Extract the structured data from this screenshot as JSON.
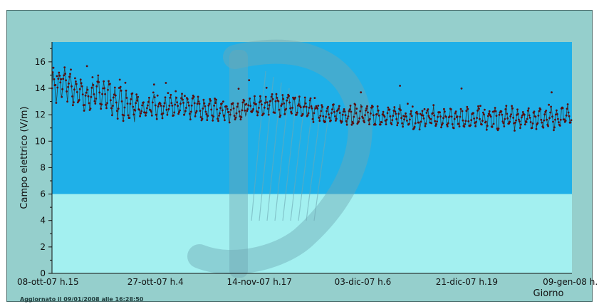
{
  "footer": {
    "updated_text": "Aggiornato il 09/01/2008 alle 16:28:50"
  },
  "colors": {
    "frame_bg": "#95cfcc",
    "above_threshold_band": "#1fb0e8",
    "below_threshold_band": "#a3f0f0",
    "line": "#2b3e3e",
    "points": "#5a0d0d",
    "watermark": "#6fa9b4"
  },
  "watermark_icon": "harp-logo-icon",
  "chart_data": {
    "type": "line",
    "title": "",
    "xlabel": "Giorno",
    "ylabel": "Campo elettrico (V/m)",
    "ylim": [
      0,
      17.5
    ],
    "yticks": [
      0,
      2,
      4,
      6,
      8,
      10,
      12,
      14,
      16
    ],
    "x_range_days": [
      0,
      93
    ],
    "xticks": [
      {
        "label": "08-ott-07 h.15",
        "day": 0
      },
      {
        "label": "27-ott-07 h.4",
        "day": 18.5
      },
      {
        "label": "14-nov-07 h.17",
        "day": 37.1
      },
      {
        "label": "03-dic-07 h.6",
        "day": 55.6
      },
      {
        "label": "21-dic-07 h.19",
        "day": 74.2
      },
      {
        "label": "09-gen-08 h.",
        "day": 92.7
      }
    ],
    "threshold": 6,
    "grid": false,
    "legend": "none",
    "series": [
      {
        "values": [
          14.3,
          13.9,
          14.6,
          14.1,
          13.7,
          13.8,
          13.2,
          13.4,
          13.9,
          13.3,
          13.7,
          13.0,
          12.9,
          12.8,
          12.6,
          12.8,
          12.4,
          12.5,
          12.7,
          12.4,
          12.5,
          12.6,
          12.6,
          12.8,
          12.7,
          12.5,
          12.7,
          12.4,
          12.4,
          12.5,
          12.3,
          12.3,
          12.2,
          12.2,
          12.2,
          12.5,
          12.6,
          12.5,
          12.6,
          12.8,
          12.9,
          12.6,
          12.8,
          12.8,
          12.5,
          12.4,
          12.4,
          12.3,
          12.1,
          12.1,
          12.0,
          12.1,
          12.0,
          12.1,
          11.9,
          12.0,
          12.0,
          11.9,
          11.8,
          11.7,
          11.9,
          11.9,
          12.0,
          11.6,
          11.7,
          11.6,
          11.7,
          11.6,
          11.8,
          11.7,
          11.7,
          11.7,
          11.6,
          11.7,
          11.8,
          11.7,
          11.8,
          11.6,
          11.8,
          11.6,
          11.7,
          11.9,
          11.8,
          11.6,
          11.7,
          11.9,
          11.6,
          11.7,
          11.8,
          11.9,
          11.6,
          11.7,
          11.9
        ]
      }
    ]
  }
}
